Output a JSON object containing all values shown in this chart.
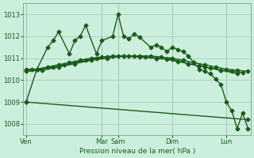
{
  "bg_color": "#cceedd",
  "grid_color": "#aaccbb",
  "line_color": "#1a5c1a",
  "marker": "D",
  "markersize": 2.5,
  "linewidth": 1.0,
  "title": "Pression niveau de la mer( hPa )",
  "ylim": [
    1007.5,
    1013.5
  ],
  "yticks": [
    1008,
    1009,
    1010,
    1011,
    1012,
    1013
  ],
  "xtick_positions": [
    0,
    14,
    17,
    27,
    37
  ],
  "xtick_labels": [
    "Ven",
    "Mar",
    "Sam",
    "Dim",
    "Lun"
  ],
  "vline_positions": [
    0,
    14,
    17,
    27,
    37
  ],
  "n_points": 42,
  "series": [
    {
      "x": [
        0,
        2,
        4,
        5,
        6,
        8,
        9,
        10,
        11,
        13,
        14,
        16,
        17,
        18,
        19,
        20,
        21,
        23,
        24,
        25,
        26,
        27,
        28,
        29,
        30,
        31,
        32,
        33,
        34,
        35,
        36,
        37,
        38,
        39,
        40,
        41
      ],
      "y": [
        1009.0,
        1010.5,
        1011.5,
        1011.8,
        1012.2,
        1011.2,
        1011.8,
        1012.0,
        1012.5,
        1011.2,
        1011.8,
        1012.0,
        1013.0,
        1012.0,
        1011.9,
        1012.1,
        1011.95,
        1011.5,
        1011.6,
        1011.5,
        1011.3,
        1011.5,
        1011.4,
        1011.3,
        1011.1,
        1010.8,
        1010.5,
        1010.4,
        1010.3,
        1010.05,
        1009.8,
        1009.0,
        1008.6,
        1007.8,
        1008.5,
        1007.8
      ]
    },
    {
      "x": [
        0,
        1,
        3,
        5,
        7,
        9,
        11,
        13,
        15,
        17,
        19,
        21,
        23,
        25,
        27,
        29,
        31,
        33,
        35,
        37,
        39,
        41
      ],
      "y": [
        1010.5,
        1010.5,
        1010.5,
        1010.6,
        1010.7,
        1010.8,
        1010.9,
        1011.0,
        1011.05,
        1011.1,
        1011.1,
        1011.1,
        1011.1,
        1011.05,
        1011.0,
        1010.9,
        1010.8,
        1010.7,
        1010.6,
        1010.5,
        1010.45,
        1010.4
      ]
    },
    {
      "x": [
        0,
        2,
        4,
        6,
        8,
        10,
        12,
        14,
        16,
        18,
        20,
        22,
        24,
        26,
        28,
        30,
        32,
        34,
        36,
        38,
        40
      ],
      "y": [
        1010.45,
        1010.5,
        1010.6,
        1010.7,
        1010.8,
        1010.9,
        1011.0,
        1011.05,
        1011.1,
        1011.1,
        1011.1,
        1011.05,
        1011.0,
        1010.95,
        1010.85,
        1010.75,
        1010.65,
        1010.55,
        1010.45,
        1010.4,
        1010.35
      ]
    },
    {
      "x": [
        0,
        3,
        6,
        9,
        12,
        15,
        18,
        21,
        24,
        27,
        30,
        33,
        36,
        39
      ],
      "y": [
        1010.4,
        1010.45,
        1010.6,
        1010.75,
        1010.9,
        1011.0,
        1011.1,
        1011.05,
        1011.0,
        1010.95,
        1010.75,
        1010.6,
        1010.45,
        1010.3
      ]
    },
    {
      "x": [
        0,
        41
      ],
      "y": [
        1009.0,
        1008.2
      ]
    }
  ]
}
